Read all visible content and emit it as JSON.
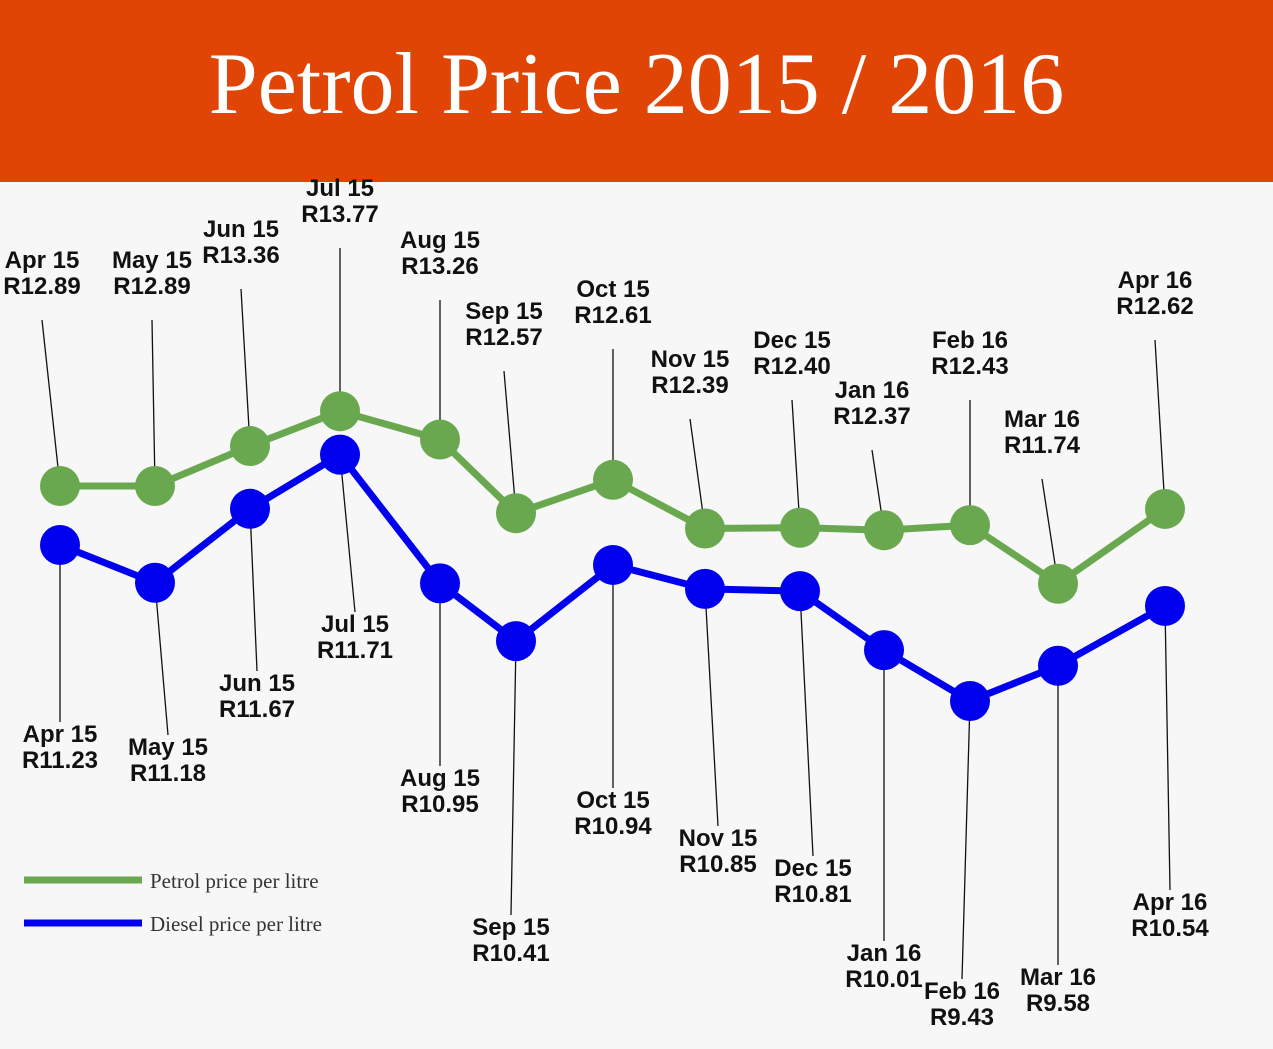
{
  "title": "Petrol Price 2015 / 2016",
  "colors": {
    "header": "#e04505",
    "petrol": "#6aa84f",
    "diesel": "#0000ee",
    "leader": "#111111"
  },
  "chart_data": {
    "type": "line",
    "title": "Petrol Price 2015 / 2016",
    "xlabel": "",
    "ylabel": "",
    "categories": [
      "Apr 15",
      "May 15",
      "Jun 15",
      "Jul 15",
      "Aug 15",
      "Sep 15",
      "Oct 15",
      "Nov 15",
      "Dec 15",
      "Jan 16",
      "Feb 16",
      "Mar 16",
      "Apr 16"
    ],
    "series": [
      {
        "name": "Petrol price per litre",
        "color": "#6aa84f",
        "values": [
          12.89,
          12.89,
          13.36,
          13.77,
          13.26,
          12.57,
          12.61,
          12.39,
          12.4,
          12.37,
          12.43,
          11.74,
          12.62
        ],
        "labels": [
          "R12.89",
          "R12.89",
          "R13.36",
          "R13.77",
          "R13.26",
          "R12.57",
          "R12.61",
          "R12.39",
          "R12.40",
          "R12.37",
          "R12.43",
          "R11.74",
          "R12.62"
        ]
      },
      {
        "name": "Diesel price per litre",
        "color": "#0000ee",
        "values": [
          11.23,
          11.18,
          11.67,
          11.71,
          10.95,
          10.41,
          10.94,
          10.85,
          10.81,
          10.01,
          9.43,
          9.58,
          10.54
        ],
        "labels": [
          "R11.23",
          "R11.18",
          "R11.67",
          "R11.71",
          "R10.95",
          "R10.41",
          "R10.94",
          "R10.85",
          "R10.81",
          "R10.01",
          "R9.43",
          "R9.58",
          "R10.54"
        ]
      }
    ],
    "legend": "bottom-left",
    "grid": false
  }
}
